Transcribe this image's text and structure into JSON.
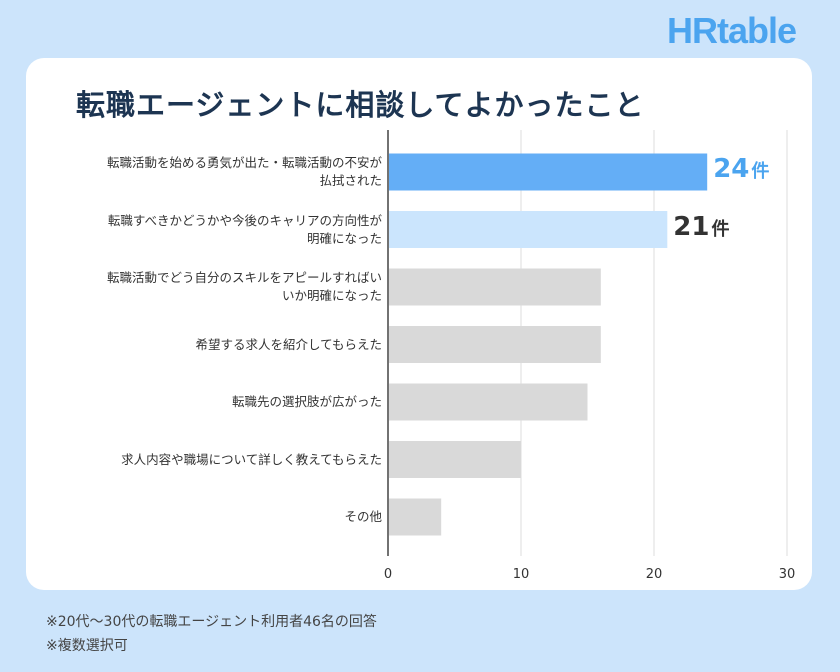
{
  "logo": "HRtable",
  "title": "転職エージェントに相談してよかったこと",
  "notes": [
    "※20代〜30代の転職エージェント利用者46名の回答",
    "※複数選択可"
  ],
  "colors": {
    "background": "#cce4fb",
    "highlight1": "#64aef6",
    "highlight2": "#cbe5fd",
    "default_bar": "#d9d9d9",
    "title": "#1d3552",
    "value1": "#4ba4ef",
    "value2": "#333333"
  },
  "chart_data": {
    "type": "bar",
    "orientation": "horizontal",
    "title": "転職エージェントに相談してよかったこと",
    "categories": [
      [
        "転職活動を始める勇気が出た・転職活動の不安が",
        "払拭された"
      ],
      [
        "転職すべきかどうかや今後のキャリアの方向性が",
        "明確になった"
      ],
      [
        "転職活動でどう自分のスキルをアピールすればい",
        "いか明確になった"
      ],
      [
        "希望する求人を紹介してもらえた"
      ],
      [
        "転職先の選択肢が広がった"
      ],
      [
        "求人内容や職場について詳しく教えてもらえた"
      ],
      [
        "その他"
      ]
    ],
    "values": [
      24,
      21,
      16,
      16,
      15,
      10,
      4
    ],
    "data_labels": [
      {
        "num": "24",
        "unit": "件"
      },
      {
        "num": "21",
        "unit": "件"
      },
      null,
      null,
      null,
      null,
      null
    ],
    "xlim": [
      0,
      30
    ],
    "xticks": [
      "0",
      "10",
      "20",
      "30"
    ],
    "grid": true,
    "xlabel": "",
    "ylabel": ""
  }
}
